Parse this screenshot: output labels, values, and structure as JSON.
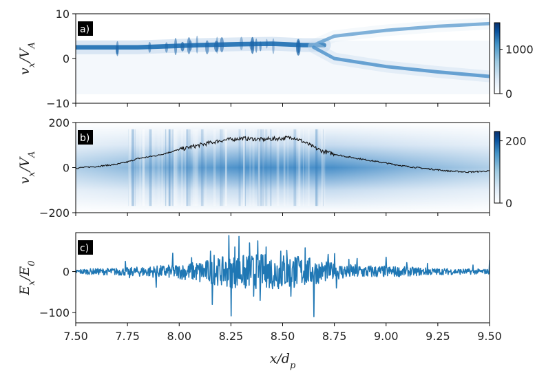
{
  "colors": {
    "density_colormap": [
      "#ffffff",
      "#deebf7",
      "#9ecae1",
      "#4292c6",
      "#08519c",
      "#08306b"
    ],
    "line_blue": "#1f77b4",
    "mean_line": "#111111"
  },
  "chart_data": [
    {
      "type": "heatmap",
      "panel_label": "a)",
      "ylabel": "v_x/V_A",
      "xlim": [
        7.5,
        9.5
      ],
      "ylim": [
        -10,
        10
      ],
      "yticks": [
        {
          "value": 10,
          "label": "10"
        },
        {
          "value": 0,
          "label": "0"
        },
        {
          "value": -10,
          "label": "−10"
        }
      ],
      "colorbar": {
        "range": [
          0,
          1600
        ],
        "ticks": [
          {
            "value": 1000,
            "label": "1000"
          },
          {
            "value": 0,
            "label": "0"
          }
        ]
      },
      "beams": [
        {
          "x": [
            7.5,
            7.8,
            8.1,
            8.3,
            8.45,
            8.6,
            8.7
          ],
          "y": [
            2.5,
            2.5,
            3.0,
            3.2,
            3.3,
            3.0,
            3.0
          ],
          "peak": 1500
        },
        {
          "x": [
            8.65,
            8.75,
            9.0,
            9.25,
            9.5
          ],
          "y": [
            3.0,
            5.0,
            6.3,
            7.2,
            7.8
          ],
          "peak": 450
        },
        {
          "x": [
            8.65,
            8.75,
            9.0,
            9.25,
            9.5
          ],
          "y": [
            2.5,
            0.0,
            -1.8,
            -3.0,
            -4.0
          ],
          "peak": 900
        }
      ]
    },
    {
      "type": "heatmap",
      "panel_label": "b)",
      "ylabel": "v_x/V_A",
      "xlim": [
        7.5,
        9.5
      ],
      "ylim": [
        -200,
        200
      ],
      "yticks": [
        {
          "value": 200,
          "label": "200"
        },
        {
          "value": 0,
          "label": "0"
        },
        {
          "value": -200,
          "label": "−200"
        }
      ],
      "colorbar": {
        "range": [
          0,
          230
        ],
        "ticks": [
          {
            "value": 200,
            "label": "200"
          },
          {
            "value": 0,
            "label": "0"
          }
        ]
      },
      "mean_velocity": {
        "x": [
          7.5,
          7.6,
          7.7,
          7.75,
          7.8,
          7.9,
          8.0,
          8.1,
          8.2,
          8.3,
          8.4,
          8.5,
          8.55,
          8.6,
          8.65,
          8.7,
          8.8,
          8.9,
          9.0,
          9.1,
          9.2,
          9.3,
          9.4,
          9.5
        ],
        "y": [
          -2,
          5,
          15,
          25,
          40,
          55,
          80,
          100,
          120,
          130,
          125,
          130,
          135,
          115,
          90,
          70,
          50,
          35,
          20,
          5,
          -5,
          -15,
          -20,
          -15
        ]
      }
    },
    {
      "type": "line",
      "panel_label": "c)",
      "ylabel": "E_x/E_0",
      "xlabel": "x/d_p",
      "xlim": [
        7.5,
        9.5
      ],
      "ylim": [
        -125,
        95
      ],
      "yticks": [
        {
          "value": 0,
          "label": "0"
        },
        {
          "value": -100,
          "label": "−100"
        }
      ],
      "xticks": [
        {
          "value": 7.5,
          "label": "7.50"
        },
        {
          "value": 7.75,
          "label": "7.75"
        },
        {
          "value": 8.0,
          "label": "8.00"
        },
        {
          "value": 8.25,
          "label": "8.25"
        },
        {
          "value": 8.5,
          "label": "8.50"
        },
        {
          "value": 8.75,
          "label": "8.75"
        },
        {
          "value": 9.0,
          "label": "9.00"
        },
        {
          "value": 9.25,
          "label": "9.25"
        },
        {
          "value": 9.5,
          "label": "9.50"
        }
      ],
      "noise_envelope": {
        "x": [
          7.5,
          7.75,
          8.0,
          8.15,
          8.25,
          8.5,
          8.6,
          8.75,
          9.0,
          9.25,
          9.5
        ],
        "amplitude": [
          6,
          10,
          18,
          30,
          40,
          45,
          38,
          20,
          14,
          8,
          6
        ]
      },
      "spikes": [
        {
          "x": 7.74,
          "y": 25
        },
        {
          "x": 7.76,
          "y": -15
        },
        {
          "x": 7.89,
          "y": -38
        },
        {
          "x": 7.97,
          "y": 45
        },
        {
          "x": 8.06,
          "y": 34
        },
        {
          "x": 8.1,
          "y": -25
        },
        {
          "x": 8.15,
          "y": 50
        },
        {
          "x": 8.16,
          "y": -80
        },
        {
          "x": 8.17,
          "y": 40
        },
        {
          "x": 8.24,
          "y": 88
        },
        {
          "x": 8.25,
          "y": -108
        },
        {
          "x": 8.27,
          "y": 60
        },
        {
          "x": 8.29,
          "y": 86
        },
        {
          "x": 8.32,
          "y": -40
        },
        {
          "x": 8.34,
          "y": 70
        },
        {
          "x": 8.36,
          "y": -60
        },
        {
          "x": 8.38,
          "y": 75
        },
        {
          "x": 8.39,
          "y": -70
        },
        {
          "x": 8.42,
          "y": 60
        },
        {
          "x": 8.46,
          "y": -35
        },
        {
          "x": 8.49,
          "y": 50
        },
        {
          "x": 8.52,
          "y": 52
        },
        {
          "x": 8.54,
          "y": -60
        },
        {
          "x": 8.56,
          "y": 35
        },
        {
          "x": 8.61,
          "y": 58
        },
        {
          "x": 8.65,
          "y": -110
        },
        {
          "x": 8.72,
          "y": 42
        },
        {
          "x": 8.75,
          "y": 44
        },
        {
          "x": 8.76,
          "y": -40
        },
        {
          "x": 8.82,
          "y": 30
        },
        {
          "x": 8.86,
          "y": 32
        },
        {
          "x": 9.0,
          "y": 35
        },
        {
          "x": 9.1,
          "y": 22
        },
        {
          "x": 9.2,
          "y": 20
        },
        {
          "x": 9.42,
          "y": 16
        },
        {
          "x": 9.5,
          "y": 28
        }
      ]
    }
  ]
}
